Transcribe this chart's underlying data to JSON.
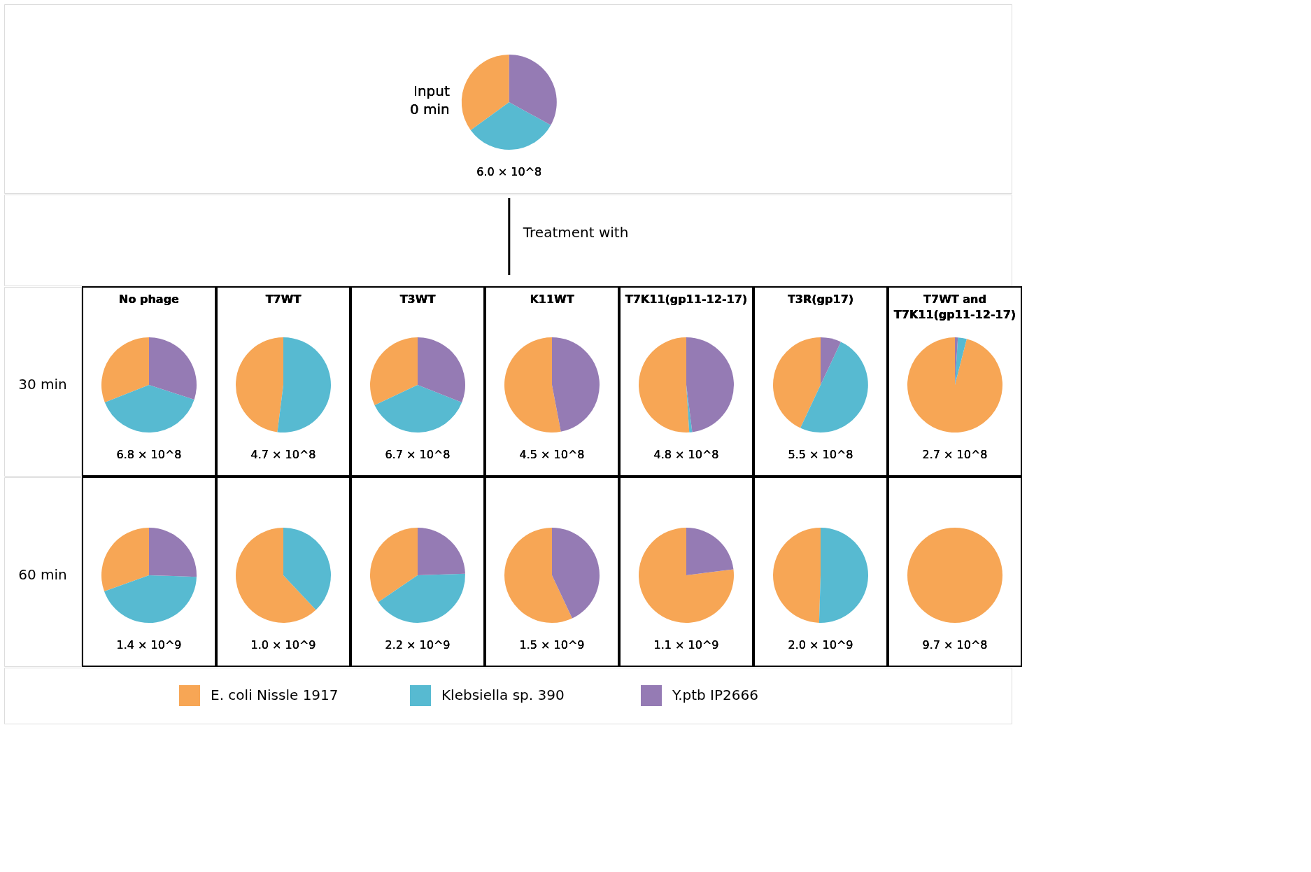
{
  "chart_data": [
    {
      "type": "pie",
      "title": "Input 0 min",
      "categories": [
        "E. coli Nissle 1917",
        "Klebsiella sp. 390",
        "Y.ptb IP2666"
      ],
      "values": [
        35,
        32,
        33
      ],
      "colors": [
        "#f7a655",
        "#57bad1",
        "#957bb4"
      ],
      "annotations": [
        "6.0 × 10^8"
      ],
      "legend": "bottom"
    },
    {
      "type": "other",
      "annotations": [
        "Treatment with"
      ]
    },
    {
      "type": "other",
      "annotations": [
        "30 min"
      ]
    },
    {
      "type": "pie",
      "title": "No phage",
      "categories": [
        null,
        null,
        null
      ],
      "values": [
        31,
        39,
        30
      ],
      "colors": [
        "#f7a655",
        "#57bad1",
        "#957bb4"
      ],
      "annotations": [
        "6.8 × 10^8"
      ]
    },
    {
      "type": "pie",
      "title": "T7WT",
      "categories": [
        null,
        null,
        null
      ],
      "values": [
        48,
        52,
        0
      ],
      "colors": [
        "#f7a655",
        "#57bad1",
        "#957bb4"
      ],
      "annotations": [
        "4.7 × 10^8"
      ]
    },
    {
      "type": "pie",
      "title": "T3WT",
      "categories": [
        null,
        null,
        null
      ],
      "values": [
        32,
        37,
        31
      ],
      "colors": [
        "#f7a655",
        "#57bad1",
        "#957bb4"
      ],
      "annotations": [
        "6.7 × 10^8"
      ]
    },
    {
      "type": "pie",
      "title": "K11WT",
      "categories": [
        null,
        null,
        null
      ],
      "values": [
        53,
        0,
        47
      ],
      "colors": [
        "#f7a655",
        "#57bad1",
        "#957bb4"
      ],
      "annotations": [
        "4.5 × 10^8"
      ]
    },
    {
      "type": "pie",
      "title": "T7K11(gp11-12-17)",
      "categories": [
        null,
        null,
        null
      ],
      "values": [
        51,
        1,
        48
      ],
      "colors": [
        "#f7a655",
        "#57bad1",
        "#957bb4"
      ],
      "annotations": [
        "4.8 × 10^8"
      ]
    },
    {
      "type": "pie",
      "title": "T3R(gp17)",
      "categories": [
        null,
        null,
        null
      ],
      "values": [
        43,
        50,
        7
      ],
      "colors": [
        "#f7a655",
        "#57bad1",
        "#957bb4"
      ],
      "annotations": [
        "5.5 × 10^8"
      ]
    },
    {
      "type": "pie",
      "title": "T7WT and T7K11(gp11-12-17)",
      "categories": [
        null,
        null,
        null
      ],
      "values": [
        96,
        3,
        1
      ],
      "colors": [
        "#f7a655",
        "#57bad1",
        "#957bb4"
      ],
      "annotations": [
        "2.7 × 10^8"
      ]
    },
    {
      "type": "other",
      "annotations": [
        "60 min"
      ]
    },
    {
      "type": "pie",
      "categories": [
        null,
        null,
        null
      ],
      "values": [
        30.5,
        44,
        25.5
      ],
      "colors": [
        "#f7a655",
        "#57bad1",
        "#957bb4"
      ],
      "annotations": [
        "1.4 × 10^9"
      ]
    },
    {
      "type": "pie",
      "categories": [
        null,
        null,
        null
      ],
      "values": [
        62,
        38,
        0
      ],
      "colors": [
        "#f7a655",
        "#57bad1",
        "#957bb4"
      ],
      "annotations": [
        "1.0 × 10^9"
      ]
    },
    {
      "type": "pie",
      "categories": [
        null,
        null,
        null
      ],
      "values": [
        34.5,
        41,
        24.5
      ],
      "colors": [
        "#f7a655",
        "#57bad1",
        "#957bb4"
      ],
      "annotations": [
        "2.2 × 10^9"
      ]
    },
    {
      "type": "pie",
      "categories": [
        null,
        null,
        null
      ],
      "values": [
        57,
        0,
        43
      ],
      "colors": [
        "#f7a655",
        "#57bad1",
        "#957bb4"
      ],
      "annotations": [
        "1.5 × 10^9"
      ]
    },
    {
      "type": "pie",
      "categories": [
        null,
        null,
        null
      ],
      "values": [
        77,
        0,
        23
      ],
      "colors": [
        "#f7a655",
        "#57bad1",
        "#957bb4"
      ],
      "annotations": [
        "1.1 × 10^9"
      ]
    },
    {
      "type": "pie",
      "categories": [
        null,
        null,
        null
      ],
      "values": [
        49.5,
        50.5,
        0
      ],
      "colors": [
        "#f7a655",
        "#57bad1",
        "#957bb4"
      ],
      "annotations": [
        "2.0 × 10^9"
      ]
    },
    {
      "type": "pie",
      "categories": [
        null,
        null,
        null
      ],
      "values": [
        100,
        0,
        0
      ],
      "colors": [
        "#f7a655",
        "#57bad1",
        "#957bb4"
      ],
      "annotations": [
        "9.7 × 10^8"
      ]
    }
  ]
}
